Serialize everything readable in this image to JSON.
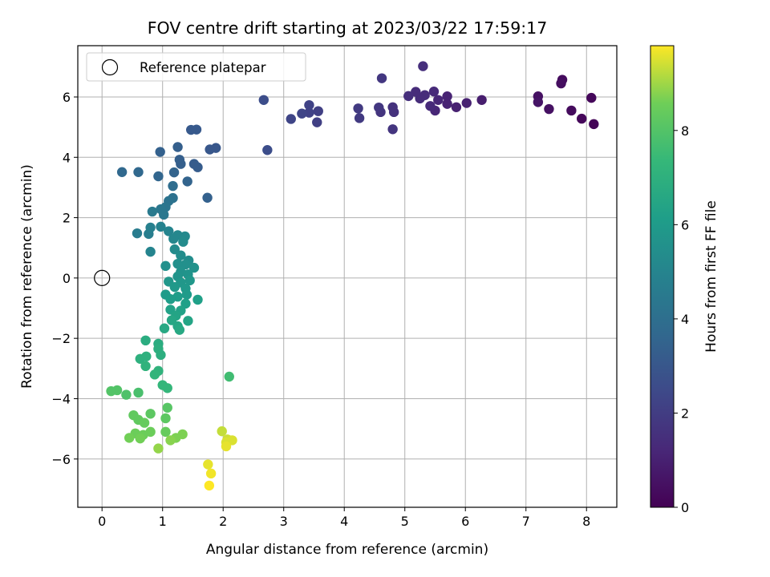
{
  "chart_data": {
    "type": "scatter",
    "title": "FOV centre drift starting at 2023/03/22 17:59:17",
    "xlabel": "Angular distance from reference (arcmin)",
    "ylabel": "Rotation from reference (arcmin)",
    "xlim": [
      -0.4,
      8.5
    ],
    "ylim": [
      -7.6,
      7.7
    ],
    "xticks": [
      "0",
      "1",
      "2",
      "3",
      "4",
      "5",
      "6",
      "7",
      "8"
    ],
    "yticks": [
      "−6",
      "−4",
      "−2",
      "0",
      "2",
      "4",
      "6"
    ],
    "grid": true,
    "legend": {
      "position": "top-left",
      "entries": [
        "Reference platepar"
      ]
    },
    "reference_point": {
      "x": 0,
      "y": 0,
      "marker": "open-circle"
    },
    "colorbar": {
      "label": "Hours from first FF file",
      "range": [
        0,
        9.8
      ],
      "ticks": [
        "0",
        "2",
        "4",
        "6",
        "8"
      ],
      "colormap": "viridis"
    },
    "points": [
      {
        "x": 8.12,
        "y": 5.1,
        "c": 0.1
      },
      {
        "x": 7.92,
        "y": 5.28,
        "c": 0.2
      },
      {
        "x": 8.08,
        "y": 5.97,
        "c": 0.2
      },
      {
        "x": 7.75,
        "y": 5.55,
        "c": 0.3
      },
      {
        "x": 7.6,
        "y": 6.57,
        "c": 0.3
      },
      {
        "x": 7.58,
        "y": 6.45,
        "c": 0.4
      },
      {
        "x": 7.38,
        "y": 5.6,
        "c": 0.5
      },
      {
        "x": 7.2,
        "y": 6.02,
        "c": 0.5
      },
      {
        "x": 7.2,
        "y": 5.83,
        "c": 0.6
      },
      {
        "x": 6.27,
        "y": 5.9,
        "c": 0.9
      },
      {
        "x": 6.02,
        "y": 5.8,
        "c": 1.0
      },
      {
        "x": 5.85,
        "y": 5.66,
        "c": 1.0
      },
      {
        "x": 5.7,
        "y": 6.02,
        "c": 1.1
      },
      {
        "x": 5.7,
        "y": 5.77,
        "c": 1.1
      },
      {
        "x": 5.5,
        "y": 5.55,
        "c": 1.2
      },
      {
        "x": 5.55,
        "y": 5.9,
        "c": 1.2
      },
      {
        "x": 5.48,
        "y": 6.18,
        "c": 1.3
      },
      {
        "x": 5.42,
        "y": 5.7,
        "c": 1.3
      },
      {
        "x": 5.33,
        "y": 6.06,
        "c": 1.4
      },
      {
        "x": 5.25,
        "y": 5.95,
        "c": 1.4
      },
      {
        "x": 5.18,
        "y": 6.17,
        "c": 1.4
      },
      {
        "x": 5.06,
        "y": 6.03,
        "c": 1.5
      },
      {
        "x": 5.3,
        "y": 7.02,
        "c": 1.5
      },
      {
        "x": 4.82,
        "y": 5.5,
        "c": 1.6
      },
      {
        "x": 4.8,
        "y": 5.66,
        "c": 1.6
      },
      {
        "x": 4.8,
        "y": 4.93,
        "c": 1.7
      },
      {
        "x": 4.6,
        "y": 5.5,
        "c": 1.7
      },
      {
        "x": 4.57,
        "y": 5.65,
        "c": 1.8
      },
      {
        "x": 4.62,
        "y": 6.62,
        "c": 1.8
      },
      {
        "x": 4.25,
        "y": 5.3,
        "c": 1.9
      },
      {
        "x": 4.23,
        "y": 5.62,
        "c": 1.9
      },
      {
        "x": 3.57,
        "y": 5.53,
        "c": 2.1
      },
      {
        "x": 3.55,
        "y": 5.16,
        "c": 2.1
      },
      {
        "x": 3.42,
        "y": 5.48,
        "c": 2.2
      },
      {
        "x": 3.42,
        "y": 5.73,
        "c": 2.2
      },
      {
        "x": 3.3,
        "y": 5.45,
        "c": 2.3
      },
      {
        "x": 3.12,
        "y": 5.27,
        "c": 2.3
      },
      {
        "x": 2.67,
        "y": 5.9,
        "c": 2.6
      },
      {
        "x": 2.73,
        "y": 4.24,
        "c": 2.6
      },
      {
        "x": 1.88,
        "y": 4.31,
        "c": 3.0
      },
      {
        "x": 1.78,
        "y": 4.26,
        "c": 3.0
      },
      {
        "x": 1.56,
        "y": 4.92,
        "c": 3.1
      },
      {
        "x": 1.47,
        "y": 4.91,
        "c": 3.1
      },
      {
        "x": 1.58,
        "y": 3.67,
        "c": 3.2
      },
      {
        "x": 1.52,
        "y": 3.78,
        "c": 3.2
      },
      {
        "x": 1.28,
        "y": 3.92,
        "c": 3.3
      },
      {
        "x": 1.3,
        "y": 3.78,
        "c": 3.3
      },
      {
        "x": 1.25,
        "y": 4.34,
        "c": 3.3
      },
      {
        "x": 0.96,
        "y": 4.18,
        "c": 3.4
      },
      {
        "x": 1.74,
        "y": 2.66,
        "c": 3.4
      },
      {
        "x": 1.41,
        "y": 3.2,
        "c": 3.5
      },
      {
        "x": 1.19,
        "y": 3.5,
        "c": 3.5
      },
      {
        "x": 0.93,
        "y": 3.37,
        "c": 3.6
      },
      {
        "x": 0.6,
        "y": 3.51,
        "c": 3.7
      },
      {
        "x": 0.33,
        "y": 3.51,
        "c": 3.7
      },
      {
        "x": 1.17,
        "y": 3.05,
        "c": 3.9
      },
      {
        "x": 1.17,
        "y": 2.65,
        "c": 4.1
      },
      {
        "x": 1.1,
        "y": 2.55,
        "c": 4.2
      },
      {
        "x": 1.05,
        "y": 2.35,
        "c": 4.3
      },
      {
        "x": 0.97,
        "y": 2.28,
        "c": 4.4
      },
      {
        "x": 1.02,
        "y": 2.1,
        "c": 4.4
      },
      {
        "x": 0.83,
        "y": 2.2,
        "c": 4.5
      },
      {
        "x": 0.58,
        "y": 1.48,
        "c": 4.6
      },
      {
        "x": 0.77,
        "y": 1.46,
        "c": 4.7
      },
      {
        "x": 0.8,
        "y": 1.67,
        "c": 4.8
      },
      {
        "x": 0.97,
        "y": 1.7,
        "c": 4.9
      },
      {
        "x": 0.8,
        "y": 0.87,
        "c": 5.0
      },
      {
        "x": 1.1,
        "y": 1.55,
        "c": 5.0
      },
      {
        "x": 1.25,
        "y": 1.42,
        "c": 5.1
      },
      {
        "x": 1.18,
        "y": 1.3,
        "c": 5.1
      },
      {
        "x": 1.37,
        "y": 1.38,
        "c": 5.2
      },
      {
        "x": 1.34,
        "y": 1.2,
        "c": 5.3
      },
      {
        "x": 1.2,
        "y": 0.95,
        "c": 5.3
      },
      {
        "x": 1.3,
        "y": 0.75,
        "c": 5.4
      },
      {
        "x": 1.43,
        "y": 0.58,
        "c": 5.4
      },
      {
        "x": 1.38,
        "y": 0.45,
        "c": 5.5
      },
      {
        "x": 1.25,
        "y": 0.47,
        "c": 5.5
      },
      {
        "x": 1.05,
        "y": 0.4,
        "c": 5.5
      },
      {
        "x": 1.52,
        "y": 0.34,
        "c": 5.6
      },
      {
        "x": 1.3,
        "y": 0.2,
        "c": 5.6
      },
      {
        "x": 1.42,
        "y": 0.12,
        "c": 5.7
      },
      {
        "x": 1.25,
        "y": 0.05,
        "c": 5.7
      },
      {
        "x": 1.1,
        "y": -0.12,
        "c": 5.8
      },
      {
        "x": 1.3,
        "y": -0.15,
        "c": 5.8
      },
      {
        "x": 1.45,
        "y": -0.08,
        "c": 5.8
      },
      {
        "x": 1.2,
        "y": -0.3,
        "c": 5.9
      },
      {
        "x": 1.38,
        "y": -0.35,
        "c": 5.9
      },
      {
        "x": 1.05,
        "y": -0.55,
        "c": 6.0
      },
      {
        "x": 1.4,
        "y": -0.55,
        "c": 6.0
      },
      {
        "x": 1.25,
        "y": -0.62,
        "c": 6.1
      },
      {
        "x": 1.13,
        "y": -0.7,
        "c": 6.1
      },
      {
        "x": 1.58,
        "y": -0.72,
        "c": 6.2
      },
      {
        "x": 1.38,
        "y": -0.85,
        "c": 6.2
      },
      {
        "x": 1.13,
        "y": -1.05,
        "c": 6.3
      },
      {
        "x": 1.3,
        "y": -1.08,
        "c": 6.3
      },
      {
        "x": 1.22,
        "y": -1.25,
        "c": 6.4
      },
      {
        "x": 1.42,
        "y": -1.42,
        "c": 6.4
      },
      {
        "x": 1.15,
        "y": -1.4,
        "c": 6.5
      },
      {
        "x": 1.25,
        "y": -1.6,
        "c": 6.5
      },
      {
        "x": 1.28,
        "y": -1.72,
        "c": 6.6
      },
      {
        "x": 1.03,
        "y": -1.67,
        "c": 6.6
      },
      {
        "x": 0.72,
        "y": -2.07,
        "c": 6.8
      },
      {
        "x": 0.93,
        "y": -2.18,
        "c": 6.8
      },
      {
        "x": 0.93,
        "y": -2.35,
        "c": 6.9
      },
      {
        "x": 0.97,
        "y": -2.55,
        "c": 6.9
      },
      {
        "x": 0.73,
        "y": -2.6,
        "c": 7.0
      },
      {
        "x": 0.63,
        "y": -2.68,
        "c": 7.0
      },
      {
        "x": 0.72,
        "y": -2.92,
        "c": 7.1
      },
      {
        "x": 0.93,
        "y": -3.08,
        "c": 7.1
      },
      {
        "x": 0.87,
        "y": -3.2,
        "c": 7.2
      },
      {
        "x": 1.0,
        "y": -3.55,
        "c": 7.3
      },
      {
        "x": 1.08,
        "y": -3.65,
        "c": 7.3
      },
      {
        "x": 2.1,
        "y": -3.27,
        "c": 7.6
      },
      {
        "x": 0.6,
        "y": -3.8,
        "c": 7.8
      },
      {
        "x": 0.4,
        "y": -3.87,
        "c": 7.9
      },
      {
        "x": 0.25,
        "y": -3.72,
        "c": 8.0
      },
      {
        "x": 0.15,
        "y": -3.75,
        "c": 8.0
      },
      {
        "x": 1.08,
        "y": -4.3,
        "c": 8.1
      },
      {
        "x": 1.05,
        "y": -4.65,
        "c": 8.2
      },
      {
        "x": 0.8,
        "y": -4.5,
        "c": 8.2
      },
      {
        "x": 0.52,
        "y": -4.55,
        "c": 8.3
      },
      {
        "x": 0.6,
        "y": -4.7,
        "c": 8.3
      },
      {
        "x": 0.7,
        "y": -4.8,
        "c": 8.4
      },
      {
        "x": 1.05,
        "y": -5.1,
        "c": 8.4
      },
      {
        "x": 0.8,
        "y": -5.1,
        "c": 8.5
      },
      {
        "x": 0.55,
        "y": -5.15,
        "c": 8.5
      },
      {
        "x": 0.68,
        "y": -5.2,
        "c": 8.5
      },
      {
        "x": 0.45,
        "y": -5.3,
        "c": 8.6
      },
      {
        "x": 0.63,
        "y": -5.32,
        "c": 8.6
      },
      {
        "x": 1.33,
        "y": -5.18,
        "c": 8.7
      },
      {
        "x": 1.22,
        "y": -5.3,
        "c": 8.7
      },
      {
        "x": 1.13,
        "y": -5.38,
        "c": 8.8
      },
      {
        "x": 0.93,
        "y": -5.65,
        "c": 8.9
      },
      {
        "x": 1.98,
        "y": -5.08,
        "c": 9.3
      },
      {
        "x": 2.07,
        "y": -5.35,
        "c": 9.4
      },
      {
        "x": 2.15,
        "y": -5.38,
        "c": 9.5
      },
      {
        "x": 2.05,
        "y": -5.45,
        "c": 9.5
      },
      {
        "x": 2.05,
        "y": -5.58,
        "c": 9.6
      },
      {
        "x": 1.75,
        "y": -6.18,
        "c": 9.6
      },
      {
        "x": 1.8,
        "y": -6.48,
        "c": 9.7
      },
      {
        "x": 1.77,
        "y": -6.88,
        "c": 9.8
      }
    ]
  }
}
